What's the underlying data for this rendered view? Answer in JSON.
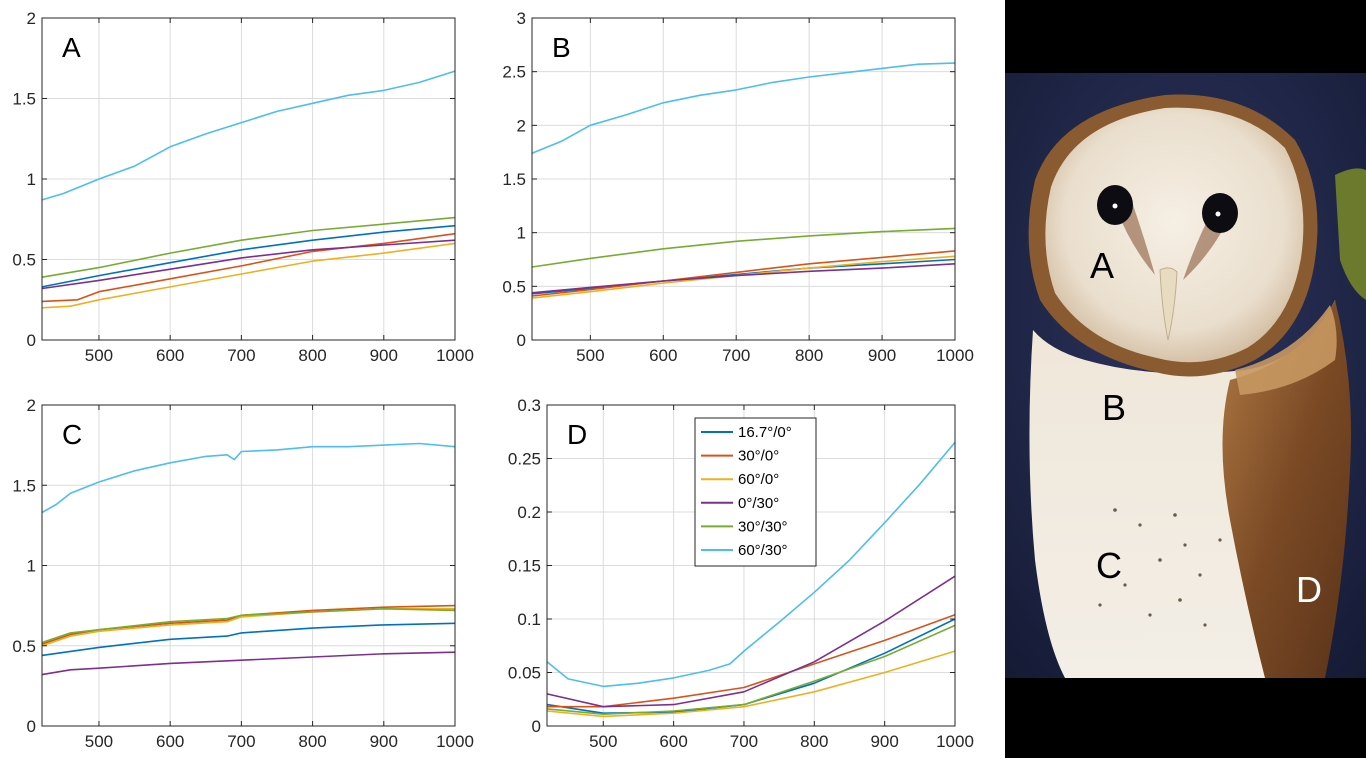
{
  "chart_data": [
    {
      "type": "line",
      "panel_label": "A",
      "xlim": [
        420,
        1000
      ],
      "ylim": [
        0,
        2
      ],
      "xticks": [
        500,
        600,
        700,
        800,
        900,
        1000
      ],
      "yticks": [
        0,
        0.5,
        1,
        1.5,
        2
      ],
      "ytick_labels": [
        "0",
        "0.5",
        "1",
        "1.5",
        "2"
      ],
      "grid": true,
      "series": [
        {
          "name": "16.7°/0°",
          "color": "#0072BD",
          "x": [
            420,
            500,
            600,
            700,
            800,
            900,
            1000
          ],
          "y": [
            0.33,
            0.4,
            0.48,
            0.56,
            0.62,
            0.67,
            0.71
          ]
        },
        {
          "name": "30°/0°",
          "color": "#D95319",
          "x": [
            420,
            470,
            500,
            600,
            700,
            800,
            900,
            1000
          ],
          "y": [
            0.24,
            0.25,
            0.3,
            0.38,
            0.46,
            0.55,
            0.6,
            0.66
          ]
        },
        {
          "name": "60°/0°",
          "color": "#EDB120",
          "x": [
            420,
            460,
            500,
            600,
            700,
            800,
            900,
            1000
          ],
          "y": [
            0.2,
            0.21,
            0.25,
            0.33,
            0.41,
            0.49,
            0.54,
            0.6
          ]
        },
        {
          "name": "0°/30°",
          "color": "#7E2F8E",
          "x": [
            420,
            500,
            600,
            700,
            800,
            900,
            1000
          ],
          "y": [
            0.32,
            0.37,
            0.44,
            0.51,
            0.56,
            0.59,
            0.62
          ]
        },
        {
          "name": "30°/30°",
          "color": "#77AC30",
          "x": [
            420,
            500,
            600,
            700,
            800,
            900,
            1000
          ],
          "y": [
            0.39,
            0.45,
            0.54,
            0.62,
            0.68,
            0.72,
            0.76
          ]
        },
        {
          "name": "60°/30°",
          "color": "#4DBEEE",
          "x": [
            420,
            450,
            500,
            550,
            600,
            650,
            700,
            750,
            800,
            850,
            900,
            950,
            1000
          ],
          "y": [
            0.87,
            0.91,
            1.0,
            1.08,
            1.2,
            1.28,
            1.35,
            1.42,
            1.47,
            1.52,
            1.55,
            1.6,
            1.67
          ]
        }
      ]
    },
    {
      "type": "line",
      "panel_label": "B",
      "xlim": [
        420,
        1000
      ],
      "ylim": [
        0,
        3
      ],
      "xticks": [
        500,
        600,
        700,
        800,
        900,
        1000
      ],
      "yticks": [
        0,
        0.5,
        1,
        1.5,
        2,
        2.5,
        3
      ],
      "ytick_labels": [
        "0",
        "0.5",
        "1",
        "1.5",
        "2",
        "2.5",
        "3"
      ],
      "grid": true,
      "series": [
        {
          "name": "16.7°/0°",
          "color": "#0072BD",
          "x": [
            420,
            500,
            600,
            700,
            800,
            900,
            1000
          ],
          "y": [
            0.43,
            0.48,
            0.55,
            0.61,
            0.67,
            0.71,
            0.75
          ]
        },
        {
          "name": "30°/0°",
          "color": "#D95319",
          "x": [
            420,
            500,
            600,
            700,
            800,
            900,
            1000
          ],
          "y": [
            0.41,
            0.47,
            0.55,
            0.63,
            0.71,
            0.77,
            0.83
          ]
        },
        {
          "name": "60°/0°",
          "color": "#EDB120",
          "x": [
            420,
            500,
            600,
            700,
            800,
            900,
            1000
          ],
          "y": [
            0.39,
            0.45,
            0.53,
            0.6,
            0.67,
            0.73,
            0.78
          ]
        },
        {
          "name": "0°/30°",
          "color": "#7E2F8E",
          "x": [
            420,
            500,
            600,
            700,
            800,
            900,
            1000
          ],
          "y": [
            0.44,
            0.49,
            0.55,
            0.6,
            0.64,
            0.67,
            0.71
          ]
        },
        {
          "name": "30°/30°",
          "color": "#77AC30",
          "x": [
            420,
            500,
            600,
            700,
            800,
            900,
            1000
          ],
          "y": [
            0.68,
            0.76,
            0.85,
            0.92,
            0.97,
            1.01,
            1.04
          ]
        },
        {
          "name": "60°/30°",
          "color": "#4DBEEE",
          "x": [
            420,
            460,
            500,
            550,
            600,
            650,
            700,
            750,
            800,
            850,
            900,
            950,
            1000
          ],
          "y": [
            1.74,
            1.85,
            2.0,
            2.1,
            2.21,
            2.28,
            2.33,
            2.4,
            2.45,
            2.49,
            2.53,
            2.57,
            2.58
          ]
        }
      ]
    },
    {
      "type": "line",
      "panel_label": "C",
      "xlim": [
        420,
        1000
      ],
      "ylim": [
        0,
        2
      ],
      "xticks": [
        500,
        600,
        700,
        800,
        900,
        1000
      ],
      "yticks": [
        0,
        0.5,
        1,
        1.5,
        2
      ],
      "ytick_labels": [
        "0",
        "0.5",
        "1",
        "1.5",
        "2"
      ],
      "grid": true,
      "series": [
        {
          "name": "16.7°/0°",
          "color": "#0072BD",
          "x": [
            420,
            500,
            600,
            680,
            700,
            800,
            900,
            1000
          ],
          "y": [
            0.44,
            0.49,
            0.54,
            0.56,
            0.58,
            0.61,
            0.63,
            0.64
          ]
        },
        {
          "name": "30°/0°",
          "color": "#D95319",
          "x": [
            420,
            460,
            500,
            600,
            680,
            700,
            800,
            900,
            1000
          ],
          "y": [
            0.51,
            0.57,
            0.6,
            0.64,
            0.66,
            0.69,
            0.72,
            0.74,
            0.75
          ]
        },
        {
          "name": "60°/0°",
          "color": "#EDB120",
          "x": [
            420,
            460,
            500,
            600,
            680,
            700,
            800,
            900,
            1000
          ],
          "y": [
            0.5,
            0.56,
            0.59,
            0.63,
            0.65,
            0.68,
            0.71,
            0.73,
            0.73
          ]
        },
        {
          "name": "0°/30°",
          "color": "#7E2F8E",
          "x": [
            420,
            460,
            500,
            600,
            700,
            800,
            900,
            1000
          ],
          "y": [
            0.32,
            0.35,
            0.36,
            0.39,
            0.41,
            0.43,
            0.45,
            0.46
          ]
        },
        {
          "name": "30°/30°",
          "color": "#77AC30",
          "x": [
            420,
            460,
            500,
            600,
            680,
            700,
            800,
            900,
            1000
          ],
          "y": [
            0.52,
            0.58,
            0.6,
            0.65,
            0.67,
            0.69,
            0.71,
            0.73,
            0.72
          ]
        },
        {
          "name": "60°/30°",
          "color": "#4DBEEE",
          "x": [
            420,
            440,
            460,
            500,
            550,
            600,
            650,
            680,
            690,
            700,
            750,
            800,
            850,
            900,
            950,
            1000
          ],
          "y": [
            1.33,
            1.38,
            1.45,
            1.52,
            1.59,
            1.64,
            1.68,
            1.69,
            1.66,
            1.71,
            1.72,
            1.74,
            1.74,
            1.75,
            1.76,
            1.74
          ]
        }
      ]
    },
    {
      "type": "line",
      "panel_label": "D",
      "xlim": [
        420,
        1000
      ],
      "ylim": [
        0,
        0.3
      ],
      "xticks": [
        500,
        600,
        700,
        800,
        900,
        1000
      ],
      "yticks": [
        0,
        0.05,
        0.1,
        0.15,
        0.2,
        0.25,
        0.3
      ],
      "ytick_labels": [
        "0",
        "0.05",
        "0.1",
        "0.15",
        "0.2",
        "0.25",
        "0.3"
      ],
      "grid": true,
      "legend_position": "top-right",
      "legend": [
        "16.7°/0°",
        "30°/0°",
        "60°/0°",
        "0°/30°",
        "30°/30°",
        "60°/30°"
      ],
      "series": [
        {
          "name": "16.7°/0°",
          "color": "#0072BD",
          "x": [
            420,
            500,
            600,
            700,
            800,
            900,
            1000
          ],
          "y": [
            0.02,
            0.012,
            0.013,
            0.02,
            0.04,
            0.068,
            0.1
          ]
        },
        {
          "name": "30°/0°",
          "color": "#D95319",
          "x": [
            420,
            500,
            600,
            700,
            800,
            900,
            1000
          ],
          "y": [
            0.018,
            0.018,
            0.026,
            0.036,
            0.058,
            0.08,
            0.104
          ]
        },
        {
          "name": "60°/0°",
          "color": "#EDB120",
          "x": [
            420,
            500,
            600,
            700,
            800,
            900,
            1000
          ],
          "y": [
            0.014,
            0.009,
            0.012,
            0.018,
            0.032,
            0.05,
            0.07
          ]
        },
        {
          "name": "0°/30°",
          "color": "#7E2F8E",
          "x": [
            420,
            500,
            600,
            700,
            800,
            900,
            1000
          ],
          "y": [
            0.03,
            0.018,
            0.02,
            0.032,
            0.06,
            0.098,
            0.14
          ]
        },
        {
          "name": "30°/30°",
          "color": "#77AC30",
          "x": [
            420,
            500,
            600,
            700,
            800,
            900,
            1000
          ],
          "y": [
            0.016,
            0.011,
            0.014,
            0.02,
            0.042,
            0.065,
            0.094
          ]
        },
        {
          "name": "60°/30°",
          "color": "#4DBEEE",
          "x": [
            420,
            450,
            500,
            550,
            600,
            650,
            680,
            700,
            750,
            800,
            850,
            900,
            950,
            1000
          ],
          "y": [
            0.06,
            0.044,
            0.037,
            0.04,
            0.045,
            0.052,
            0.058,
            0.07,
            0.097,
            0.125,
            0.155,
            0.19,
            0.226,
            0.265
          ]
        }
      ]
    }
  ],
  "owl_image": {
    "labels": [
      "A",
      "B",
      "C",
      "D"
    ]
  }
}
